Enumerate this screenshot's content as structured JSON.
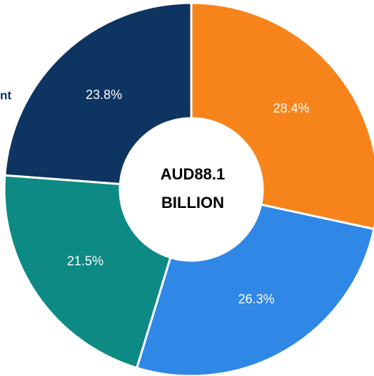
{
  "chart_data": {
    "type": "donut",
    "values": [
      28.4,
      26.3,
      21.5,
      23.8
    ],
    "value_labels": [
      "28.4%",
      "26.3%",
      "21.5%",
      "23.8%"
    ],
    "colors": [
      "#f7841b",
      "#2f87e6",
      "#0e8a85",
      "#0e3461"
    ],
    "center_label": [
      "AUD88.1",
      "BILLION"
    ],
    "annotation": "nt"
  }
}
